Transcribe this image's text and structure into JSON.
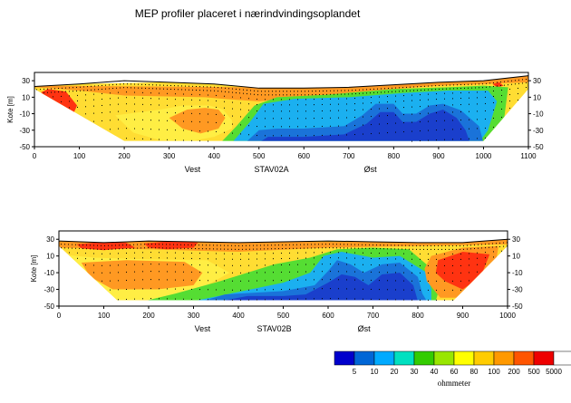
{
  "title": "MEP profiler placeret i nærindvindingsoplandet",
  "chart_data": [
    {
      "type": "heatmap",
      "profile": "STAV02A",
      "ylabel": "Kote [m]",
      "x_range": [
        0,
        1100
      ],
      "x_ticks": [
        0,
        100,
        200,
        300,
        400,
        500,
        600,
        700,
        800,
        900,
        1000,
        1100
      ],
      "y_range": [
        -50,
        40
      ],
      "y_ticks": [
        30,
        10,
        -10,
        -30,
        -50
      ],
      "surface": [
        [
          0,
          23
        ],
        [
          100,
          26
        ],
        [
          200,
          30
        ],
        [
          300,
          28
        ],
        [
          400,
          26
        ],
        [
          500,
          21
        ],
        [
          600,
          21
        ],
        [
          700,
          22
        ],
        [
          800,
          25
        ],
        [
          900,
          28
        ],
        [
          1000,
          30
        ],
        [
          1100,
          36
        ]
      ],
      "bottom": [
        [
          0,
          20
        ],
        [
          200,
          -43
        ],
        [
          1000,
          -43
        ],
        [
          1100,
          20
        ]
      ],
      "labels": {
        "west": "Vest",
        "name": "STAV02A",
        "east": "Øst"
      },
      "zones": [
        {
          "value": 100,
          "points": [
            [
              0,
              25
            ],
            [
              1100,
              37
            ],
            [
              1100,
              18
            ],
            [
              1000,
              -44
            ],
            [
              0,
              -44
            ]
          ]
        },
        {
          "value": 200,
          "points": [
            [
              0,
              24
            ],
            [
              500,
              22
            ],
            [
              800,
              26
            ],
            [
              1100,
              37
            ],
            [
              1100,
              28
            ],
            [
              900,
              24
            ],
            [
              800,
              20
            ],
            [
              700,
              14
            ],
            [
              600,
              10
            ],
            [
              500,
              5
            ],
            [
              420,
              8
            ],
            [
              380,
              10
            ],
            [
              200,
              12
            ],
            [
              100,
              18
            ],
            [
              0,
              22
            ]
          ]
        },
        {
          "value": 80,
          "points": [
            [
              180,
              -12
            ],
            [
              220,
              -33
            ],
            [
              280,
              -42
            ],
            [
              350,
              -43
            ],
            [
              400,
              -38
            ],
            [
              440,
              -28
            ],
            [
              440,
              -18
            ],
            [
              420,
              -5
            ],
            [
              390,
              0
            ],
            [
              330,
              0
            ],
            [
              280,
              -5
            ]
          ]
        },
        {
          "value": 200,
          "points": [
            [
              300,
              -15
            ],
            [
              330,
              -28
            ],
            [
              370,
              -34
            ],
            [
              410,
              -28
            ],
            [
              425,
              -15
            ],
            [
              410,
              -5
            ],
            [
              380,
              -3
            ],
            [
              340,
              -5
            ]
          ]
        },
        {
          "value": 500,
          "points": [
            [
              15,
              16
            ],
            [
              30,
              20
            ],
            [
              70,
              17
            ],
            [
              95,
              0
            ],
            [
              80,
              -18
            ],
            [
              65,
              -20
            ],
            [
              50,
              -10
            ]
          ]
        },
        {
          "value": 500,
          "points": [
            [
              1020,
              26
            ],
            [
              1035,
              28
            ],
            [
              1045,
              24
            ],
            [
              1030,
              22
            ]
          ]
        },
        {
          "value": 40,
          "points": [
            [
              415,
              -45
            ],
            [
              450,
              -25
            ],
            [
              490,
              0
            ],
            [
              540,
              10
            ],
            [
              650,
              13
            ],
            [
              800,
              20
            ],
            [
              920,
              22
            ],
            [
              1000,
              24
            ],
            [
              1055,
              22
            ],
            [
              1045,
              -20
            ],
            [
              1000,
              -45
            ]
          ]
        },
        {
          "value": 20,
          "points": [
            [
              440,
              -45
            ],
            [
              480,
              -20
            ],
            [
              510,
              2
            ],
            [
              580,
              8
            ],
            [
              700,
              10
            ],
            [
              820,
              15
            ],
            [
              920,
              18
            ],
            [
              1010,
              18
            ],
            [
              1030,
              5
            ],
            [
              1010,
              -30
            ],
            [
              990,
              -45
            ]
          ]
        },
        {
          "value": 10,
          "points": [
            [
              470,
              -45
            ],
            [
              500,
              -30
            ],
            [
              540,
              -28
            ],
            [
              600,
              -28
            ],
            [
              690,
              -25
            ],
            [
              730,
              -12
            ],
            [
              760,
              2
            ],
            [
              800,
              2
            ],
            [
              820,
              -10
            ],
            [
              850,
              -10
            ],
            [
              880,
              0
            ],
            [
              910,
              2
            ],
            [
              950,
              -6
            ],
            [
              990,
              -25
            ],
            [
              1000,
              -45
            ]
          ]
        },
        {
          "value": 5,
          "points": [
            [
              500,
              -45
            ],
            [
              520,
              -38
            ],
            [
              600,
              -38
            ],
            [
              690,
              -35
            ],
            [
              740,
              -22
            ],
            [
              770,
              -8
            ],
            [
              800,
              -8
            ],
            [
              820,
              -20
            ],
            [
              850,
              -20
            ],
            [
              880,
              -10
            ],
            [
              910,
              -5
            ],
            [
              940,
              -15
            ],
            [
              960,
              -30
            ],
            [
              970,
              -45
            ]
          ]
        }
      ]
    },
    {
      "type": "heatmap",
      "profile": "STAV02B",
      "ylabel": "Kote [m]",
      "x_range": [
        0,
        1000
      ],
      "x_ticks": [
        0,
        100,
        200,
        300,
        400,
        500,
        600,
        700,
        800,
        900,
        1000
      ],
      "y_range": [
        -50,
        40
      ],
      "y_ticks": [
        30,
        10,
        -10,
        -30,
        -50
      ],
      "surface": [
        [
          0,
          28
        ],
        [
          100,
          26
        ],
        [
          200,
          28
        ],
        [
          300,
          27
        ],
        [
          400,
          26
        ],
        [
          500,
          27
        ],
        [
          600,
          28
        ],
        [
          700,
          27
        ],
        [
          800,
          26
        ],
        [
          900,
          26
        ],
        [
          1000,
          30
        ]
      ],
      "bottom": [
        [
          0,
          22
        ],
        [
          130,
          -43
        ],
        [
          880,
          -43
        ],
        [
          1000,
          22
        ]
      ],
      "labels": {
        "west": "Vest",
        "name": "STAV02B",
        "east": "Øst"
      },
      "zones": [
        {
          "value": 100,
          "points": [
            [
              0,
              29
            ],
            [
              1000,
              31
            ],
            [
              1000,
              20
            ],
            [
              880,
              -44
            ],
            [
              130,
              -44
            ],
            [
              0,
              22
            ]
          ]
        },
        {
          "value": 200,
          "points": [
            [
              0,
              28
            ],
            [
              300,
              29
            ],
            [
              500,
              27
            ],
            [
              700,
              27
            ],
            [
              1000,
              30
            ],
            [
              1000,
              24
            ],
            [
              800,
              22
            ],
            [
              600,
              20
            ],
            [
              400,
              15
            ],
            [
              200,
              18
            ],
            [
              0,
              20
            ]
          ]
        },
        {
          "value": 500,
          "points": [
            [
              40,
              24
            ],
            [
              100,
              27
            ],
            [
              150,
              26
            ],
            [
              170,
              20
            ],
            [
              100,
              17
            ],
            [
              50,
              19
            ]
          ]
        },
        {
          "value": 500,
          "points": [
            [
              190,
              25
            ],
            [
              250,
              28
            ],
            [
              310,
              26
            ],
            [
              300,
              20
            ],
            [
              240,
              18
            ],
            [
              200,
              20
            ]
          ]
        },
        {
          "value": 80,
          "points": [
            [
              0,
              12
            ],
            [
              80,
              8
            ],
            [
              200,
              6
            ],
            [
              330,
              5
            ],
            [
              380,
              -10
            ],
            [
              330,
              -25
            ],
            [
              300,
              -40
            ],
            [
              120,
              -44
            ],
            [
              60,
              -20
            ]
          ]
        },
        {
          "value": 200,
          "points": [
            [
              50,
              2
            ],
            [
              150,
              5
            ],
            [
              280,
              3
            ],
            [
              320,
              -10
            ],
            [
              300,
              -25
            ],
            [
              220,
              -30
            ],
            [
              120,
              -30
            ],
            [
              70,
              -15
            ]
          ]
        },
        {
          "value": 40,
          "points": [
            [
              190,
              -44
            ],
            [
              260,
              -35
            ],
            [
              360,
              -20
            ],
            [
              480,
              0
            ],
            [
              560,
              8
            ],
            [
              620,
              18
            ],
            [
              700,
              20
            ],
            [
              780,
              18
            ],
            [
              830,
              -5
            ],
            [
              850,
              -25
            ],
            [
              840,
              -44
            ]
          ]
        },
        {
          "value": 20,
          "points": [
            [
              300,
              -44
            ],
            [
              400,
              -33
            ],
            [
              500,
              -22
            ],
            [
              560,
              -10
            ],
            [
              590,
              10
            ],
            [
              630,
              15
            ],
            [
              700,
              8
            ],
            [
              760,
              10
            ],
            [
              820,
              -10
            ],
            [
              830,
              -30
            ],
            [
              830,
              -44
            ]
          ]
        },
        {
          "value": 10,
          "points": [
            [
              320,
              -44
            ],
            [
              370,
              -36
            ],
            [
              500,
              -32
            ],
            [
              570,
              -25
            ],
            [
              600,
              -8
            ],
            [
              620,
              5
            ],
            [
              650,
              0
            ],
            [
              680,
              -10
            ],
            [
              720,
              0
            ],
            [
              760,
              2
            ],
            [
              800,
              -15
            ],
            [
              810,
              -35
            ],
            [
              820,
              -44
            ]
          ]
        },
        {
          "value": 5,
          "points": [
            [
              360,
              -44
            ],
            [
              420,
              -38
            ],
            [
              500,
              -38
            ],
            [
              550,
              -36
            ],
            [
              600,
              -22
            ],
            [
              630,
              -12
            ],
            [
              660,
              -15
            ],
            [
              690,
              -25
            ],
            [
              720,
              -12
            ],
            [
              760,
              -10
            ],
            [
              790,
              -25
            ],
            [
              800,
              -44
            ]
          ]
        },
        {
          "value": 200,
          "points": [
            [
              830,
              10
            ],
            [
              900,
              20
            ],
            [
              980,
              22
            ],
            [
              970,
              -10
            ],
            [
              900,
              -40
            ],
            [
              850,
              -40
            ],
            [
              820,
              -20
            ],
            [
              815,
              -5
            ]
          ]
        },
        {
          "value": 500,
          "points": [
            [
              845,
              5
            ],
            [
              900,
              15
            ],
            [
              960,
              12
            ],
            [
              940,
              -15
            ],
            [
              900,
              -30
            ],
            [
              860,
              -20
            ],
            [
              840,
              -10
            ]
          ]
        }
      ]
    }
  ],
  "legend": {
    "unit": "ohmmeter",
    "values": [
      5,
      10,
      20,
      30,
      40,
      60,
      80,
      100,
      200,
      500,
      5000
    ],
    "colors": [
      "#0000cc",
      "#0066d6",
      "#00aaff",
      "#00e0c0",
      "#33cc00",
      "#99e600",
      "#ffff00",
      "#ffcc00",
      "#ff9900",
      "#ff5500",
      "#ee0000",
      "#ffffff"
    ],
    "values_as_text": [
      "5",
      "10",
      "20",
      "30",
      "40",
      "60",
      "80",
      "100",
      "200",
      "500",
      "5000"
    ]
  },
  "palette": {
    "5": "#1a3fcc",
    "10": "#1a73d9",
    "20": "#1bb0f0",
    "30": "#33ccdd",
    "40": "#55dd33",
    "60": "#aaee22",
    "80": "#ffee44",
    "100": "#ffdd33",
    "200": "#ff9922",
    "500": "#ff3311",
    "5000": "#ee0000"
  }
}
